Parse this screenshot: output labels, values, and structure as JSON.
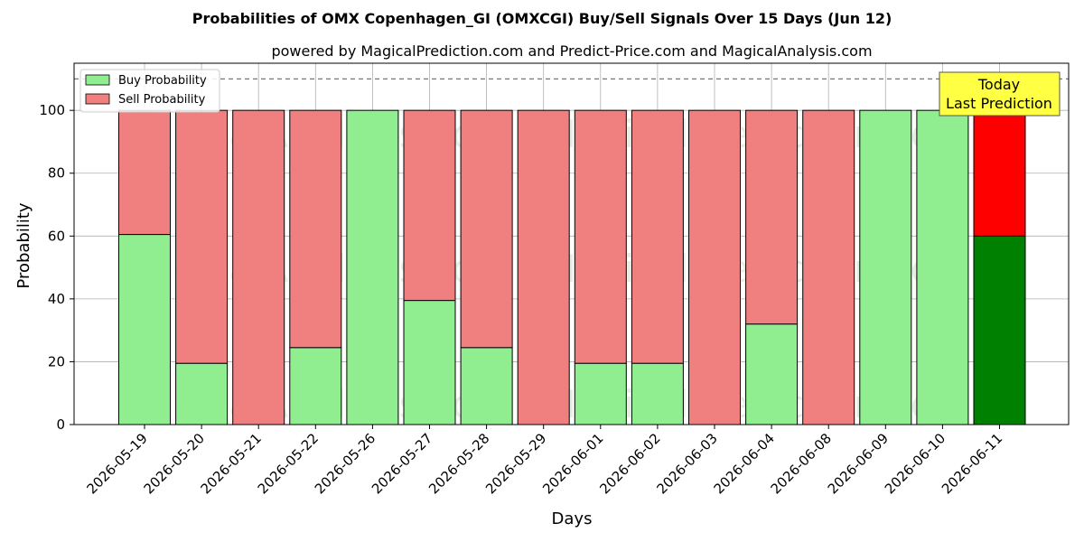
{
  "chart_data": {
    "type": "bar",
    "stacked": true,
    "title": "Probabilities of OMX Copenhagen_GI (OMXCGI) Buy/Sell Signals Over 15 Days (Jun 12)",
    "subtitle": "powered by MagicalPrediction.com and Predict-Price.com and MagicalAnalysis.com",
    "xlabel": "Days",
    "ylabel": "Probability",
    "ylim": [
      0,
      115
    ],
    "yticks": [
      0,
      20,
      40,
      60,
      80,
      100
    ],
    "reference_line": 110,
    "grid": true,
    "legend_position": "top-left",
    "categories": [
      "2026-05-19",
      "2026-05-20",
      "2026-05-21",
      "2026-05-22",
      "2026-05-26",
      "2026-05-27",
      "2026-05-28",
      "2026-05-29",
      "2026-06-01",
      "2026-06-02",
      "2026-06-03",
      "2026-06-04",
      "2026-06-08",
      "2026-06-09",
      "2026-06-10",
      "2026-06-11"
    ],
    "series": [
      {
        "name": "Buy Probability",
        "color": "#90ee90",
        "highlight_color": "#008000",
        "values": [
          60.5,
          19.5,
          0,
          24.5,
          100,
          39.5,
          24.5,
          0,
          19.5,
          19.5,
          0,
          32,
          0,
          100,
          100,
          60
        ]
      },
      {
        "name": "Sell Probability",
        "color": "#f08080",
        "highlight_color": "#ff0000",
        "values": [
          39.5,
          80.5,
          100,
          75.5,
          0,
          60.5,
          75.5,
          100,
          80.5,
          80.5,
          100,
          68,
          100,
          0,
          0,
          40
        ]
      }
    ],
    "highlight_index": 15,
    "annotation": {
      "lines": [
        "Today",
        "Last Prediction"
      ],
      "color": "#ffff44"
    },
    "watermarks": [
      "MagicalAnalysis.com",
      "MagicalPrediction.com"
    ]
  }
}
